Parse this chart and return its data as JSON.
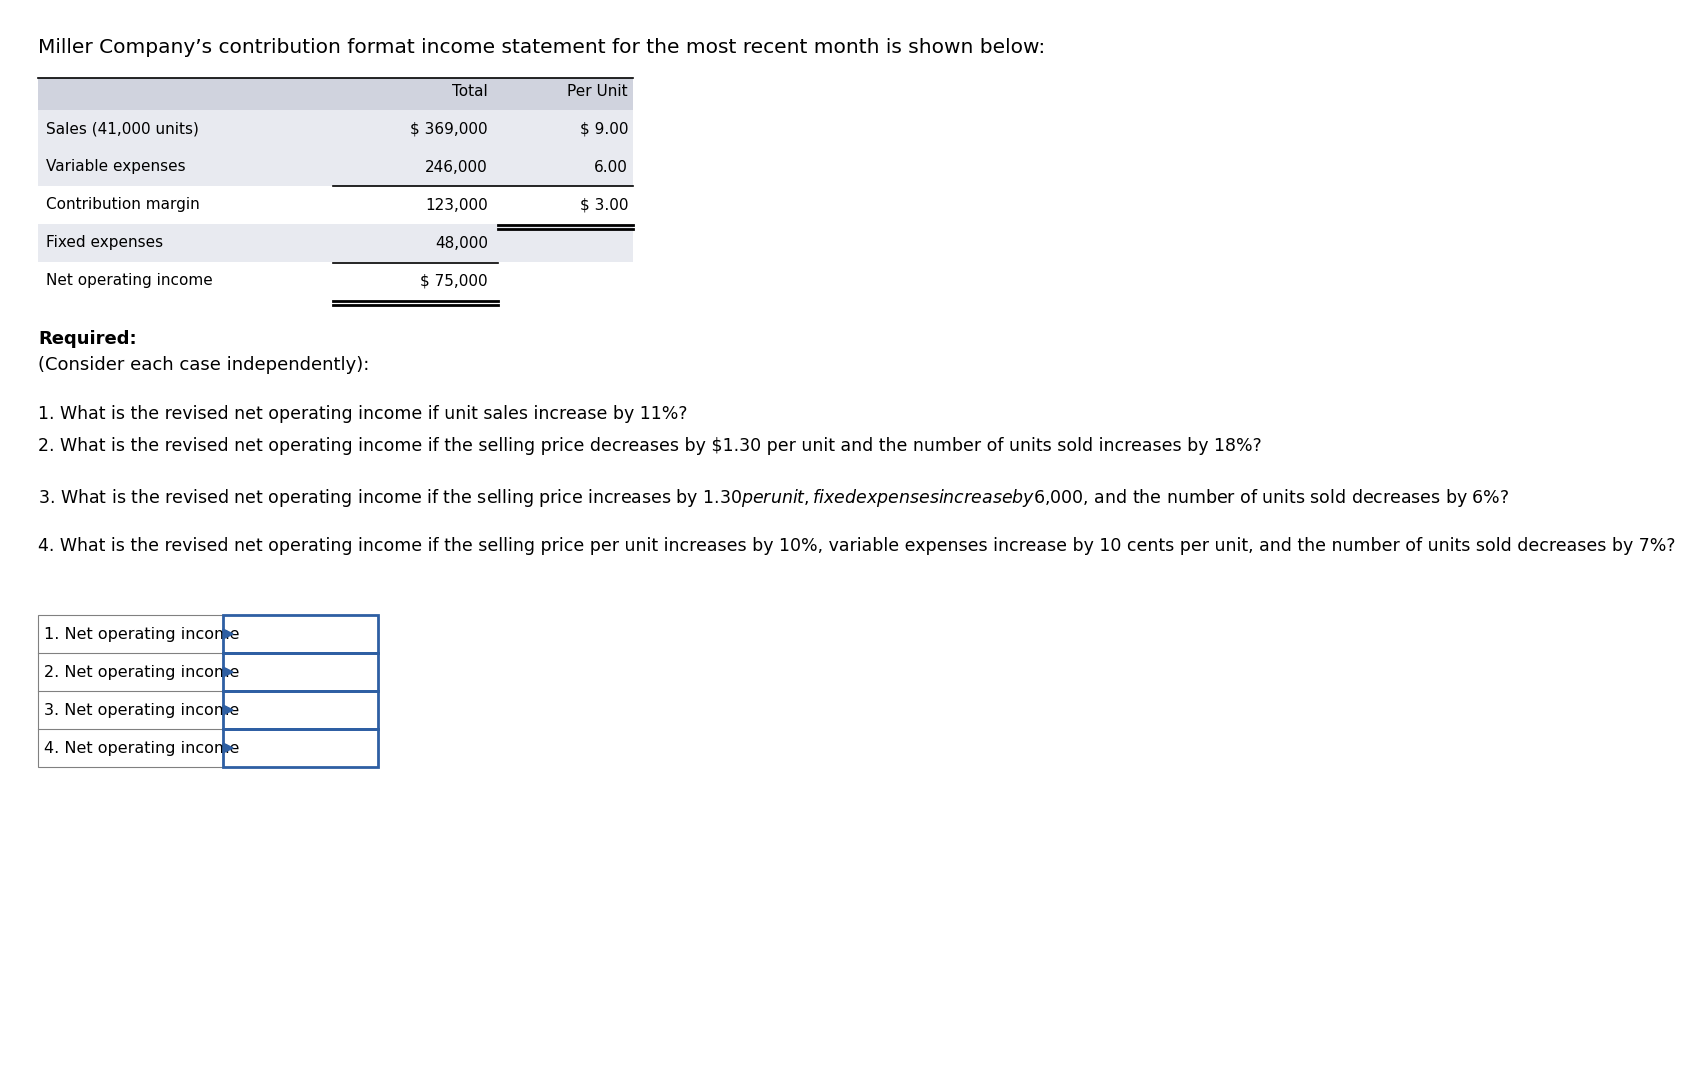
{
  "bg_color": "#ffffff",
  "title_text": "Miller Company’s contribution format income statement for the most recent month is shown below:",
  "title_fontsize": 14.5,
  "table_header_bg": "#d0d3de",
  "table_row_bg1": "#e8eaf0",
  "table_row_bg2": "#ffffff",
  "table_col_labels": [
    "",
    "Total",
    "Per Unit"
  ],
  "table_rows": [
    [
      "Sales (41,000 units)",
      "$ 369,000",
      "$ 9.00"
    ],
    [
      "Variable expenses",
      "246,000",
      "6.00"
    ],
    [
      "Contribution margin",
      "123,000",
      "$ 3.00"
    ],
    [
      "Fixed expenses",
      "48,000",
      ""
    ],
    [
      "Net operating income",
      "$ 75,000",
      ""
    ]
  ],
  "monospace_font": "Courier New",
  "sans_font": "DejaVu Sans",
  "required_text": "Required:",
  "consider_text": "(Consider each case independently):",
  "questions": [
    "1. What is the revised net operating income if unit sales increase by 11%?",
    "2. What is the revised net operating income if the selling price decreases by $1.30 per unit and the number of units sold increases by 18%?",
    "3. What is the revised net operating income if the selling price increases by $1.30 per unit, fixed expenses increase by $6,000, and the number of units sold decreases by 6%?",
    "4. What is the revised net operating income if the selling price per unit increases by 10%, variable expenses increase by 10 cents per unit, and the number of units sold decreases by 7%?"
  ],
  "answer_rows": [
    "1. Net operating income",
    "2. Net operating income",
    "3. Net operating income",
    "4. Net operating income"
  ],
  "answer_box_border": "#2e5fa3",
  "answer_arrow_color": "#2e5fa3",
  "table_border_color": "#000000"
}
